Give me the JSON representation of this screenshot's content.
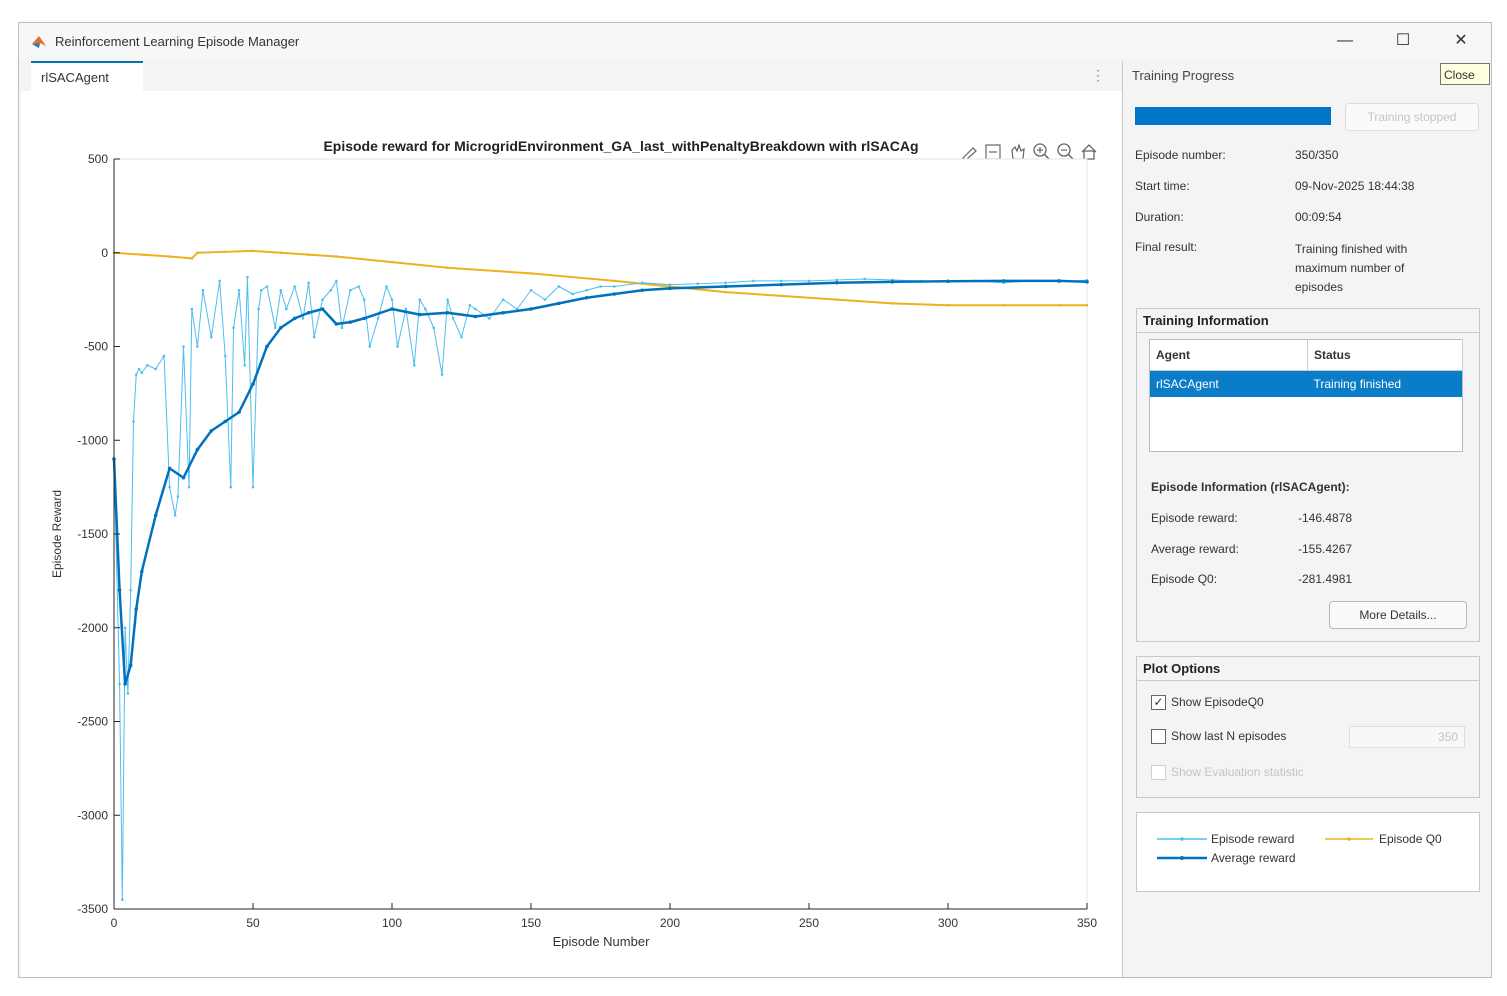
{
  "window": {
    "title": "Reinforcement Learning Episode Manager",
    "minimize": "—",
    "maximize": "☐",
    "close": "✕",
    "close_tooltip": "Close"
  },
  "tabs": [
    {
      "label": "rlSACAgent"
    }
  ],
  "plot": {
    "title": "Episode reward for MicrogridEnvironment_GA_last_withPenaltyBreakdown with rlSACAg",
    "toolbar_icons": [
      "brush-icon",
      "data-tips-icon",
      "pan-icon",
      "zoom-in-icon",
      "zoom-out-icon",
      "home-icon"
    ]
  },
  "progress": {
    "section_title": "Training Progress",
    "progress_fraction": 1.0,
    "stop_button": "Training stopped",
    "fields": [
      {
        "label": "Episode number:",
        "value": "350/350"
      },
      {
        "label": "Start time:",
        "value": "09-Nov-2025 18:44:38"
      },
      {
        "label": "Duration:",
        "value": "00:09:54"
      },
      {
        "label": "Final result:",
        "value": "Training finished with maximum number of episodes"
      }
    ]
  },
  "training_info": {
    "title": "Training Information",
    "columns": [
      "Agent",
      "Status"
    ],
    "rows": [
      {
        "agent": "rlSACAgent",
        "status": "Training finished"
      }
    ],
    "episode_info_title": "Episode Information (rlSACAgent):",
    "episode_fields": [
      {
        "label": "Episode reward:",
        "value": "-146.4878"
      },
      {
        "label": "Average reward:",
        "value": "-155.4267"
      },
      {
        "label": "Episode Q0:",
        "value": "-281.4981"
      }
    ],
    "more_details": "More Details..."
  },
  "plot_options": {
    "title": "Plot Options",
    "show_q0": {
      "label": "Show EpisodeQ0",
      "checked": true
    },
    "show_last_n": {
      "label": "Show last N episodes",
      "checked": false,
      "value": "350"
    },
    "show_eval": {
      "label": "Show Evaluation statistic",
      "checked": false,
      "enabled": false
    }
  },
  "legend_colors": {
    "episode_reward": "#4dbeee",
    "average_reward": "#0072bd",
    "episode_q0": "#edb120"
  },
  "chart_data": {
    "type": "line",
    "title": "Episode reward for MicrogridEnvironment_GA_last_withPenaltyBreakdown with rlSACAg",
    "xlabel": "Episode Number",
    "ylabel": "Episode Reward",
    "xlim": [
      0,
      350
    ],
    "ylim": [
      -3500,
      500
    ],
    "xticks": [
      0,
      50,
      100,
      150,
      200,
      250,
      300,
      350
    ],
    "yticks": [
      500,
      0,
      -500,
      -1000,
      -1500,
      -2000,
      -2500,
      -3000,
      -3500
    ],
    "grid": false,
    "legend_position": "separate panel",
    "series": [
      {
        "name": "Episode reward",
        "color": "#4dbeee",
        "x": [
          0,
          2,
          3,
          4,
          5,
          6,
          7,
          8,
          9,
          10,
          12,
          15,
          18,
          20,
          22,
          23,
          25,
          27,
          28,
          30,
          32,
          35,
          38,
          40,
          42,
          43,
          45,
          47,
          48,
          50,
          52,
          53,
          55,
          58,
          60,
          62,
          65,
          68,
          70,
          72,
          75,
          78,
          80,
          82,
          85,
          88,
          90,
          92,
          95,
          98,
          100,
          102,
          105,
          108,
          110,
          112,
          115,
          118,
          120,
          122,
          125,
          128,
          130,
          135,
          140,
          145,
          150,
          155,
          160,
          165,
          170,
          175,
          180,
          190,
          200,
          210,
          220,
          230,
          240,
          250,
          260,
          270,
          280,
          290,
          300,
          310,
          320,
          330,
          340,
          350
        ],
        "y": [
          -1100,
          -2300,
          -3450,
          -2000,
          -2350,
          -1800,
          -900,
          -650,
          -620,
          -640,
          -600,
          -620,
          -550,
          -1250,
          -1400,
          -1300,
          -500,
          -1250,
          -300,
          -500,
          -200,
          -450,
          -150,
          -550,
          -1250,
          -400,
          -200,
          -600,
          -130,
          -1250,
          -300,
          -200,
          -180,
          -400,
          -200,
          -300,
          -180,
          -350,
          -160,
          -450,
          -250,
          -200,
          -150,
          -400,
          -200,
          -180,
          -250,
          -500,
          -350,
          -180,
          -250,
          -500,
          -300,
          -600,
          -250,
          -300,
          -400,
          -650,
          -250,
          -350,
          -450,
          -280,
          -300,
          -350,
          -250,
          -300,
          -200,
          -250,
          -180,
          -220,
          -200,
          -180,
          -180,
          -160,
          -170,
          -165,
          -160,
          -150,
          -150,
          -150,
          -145,
          -140,
          -145,
          -150,
          -155,
          -150,
          -160,
          -150,
          -155,
          -146
        ]
      },
      {
        "name": "Average reward",
        "color": "#0072bd",
        "x": [
          0,
          2,
          4,
          6,
          8,
          10,
          15,
          20,
          25,
          30,
          35,
          40,
          45,
          50,
          55,
          60,
          65,
          70,
          75,
          80,
          85,
          90,
          100,
          110,
          120,
          130,
          140,
          150,
          160,
          170,
          180,
          190,
          200,
          220,
          240,
          260,
          280,
          300,
          320,
          340,
          350
        ],
        "y": [
          -1100,
          -1800,
          -2300,
          -2200,
          -1900,
          -1700,
          -1400,
          -1150,
          -1200,
          -1050,
          -950,
          -900,
          -850,
          -700,
          -500,
          -400,
          -350,
          -320,
          -300,
          -380,
          -370,
          -350,
          -300,
          -330,
          -320,
          -340,
          -320,
          -300,
          -270,
          -240,
          -220,
          -200,
          -190,
          -180,
          -170,
          -160,
          -155,
          -152,
          -150,
          -150,
          -155
        ]
      },
      {
        "name": "Episode Q0",
        "color": "#edb120",
        "x": [
          0,
          10,
          20,
          28,
          30,
          40,
          50,
          60,
          70,
          80,
          100,
          120,
          150,
          180,
          200,
          220,
          240,
          260,
          280,
          300,
          320,
          340,
          350
        ],
        "y": [
          0,
          -10,
          -20,
          -30,
          0,
          5,
          10,
          0,
          -10,
          -20,
          -50,
          -80,
          -110,
          -150,
          -180,
          -210,
          -230,
          -250,
          -270,
          -280,
          -280,
          -280,
          -280
        ]
      }
    ]
  }
}
